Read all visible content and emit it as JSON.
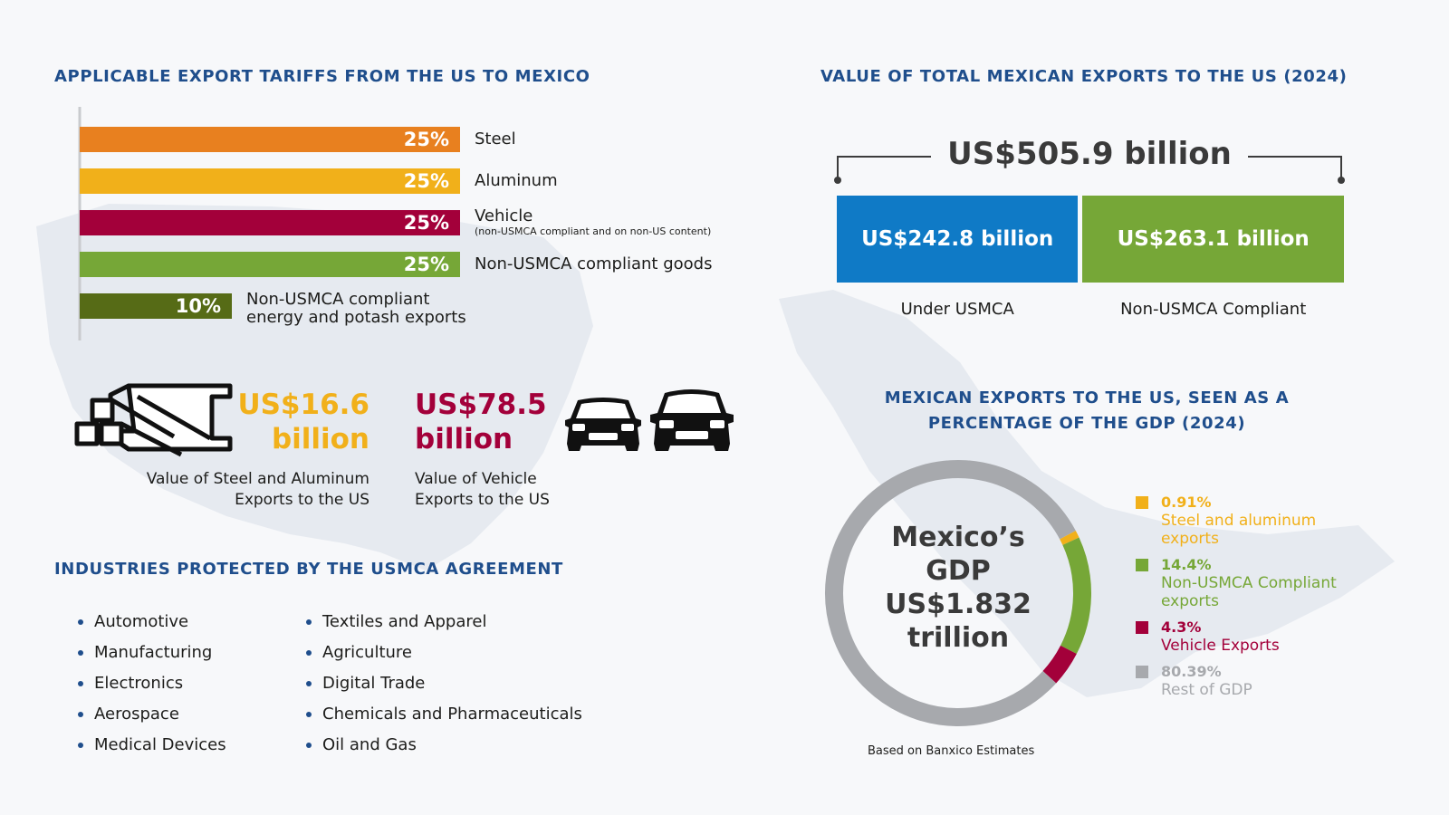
{
  "tariffs": {
    "heading": "APPLICABLE EXPORT TARIFFS FROM THE US TO MEXICO"
  },
  "chart_data": {
    "type": "bar",
    "orientation": "horizontal",
    "categories": [
      "Steel",
      "Aluminum",
      "Vehicle",
      "Non-USMCA compliant goods",
      "Non-USMCA compliant energy and potash exports"
    ],
    "category_notes": [
      "",
      "",
      "(non-USMCA compliant and on non-US content)",
      "",
      ""
    ],
    "values": [
      25,
      25,
      25,
      25,
      10
    ],
    "value_labels": [
      "25%",
      "25%",
      "25%",
      "25%",
      "10%"
    ],
    "unit": "%",
    "xlim": [
      0,
      25
    ],
    "colors": [
      "#e8801f",
      "#f1b01a",
      "#a3003a",
      "#76a737",
      "#566b16"
    ]
  },
  "steel_aluminum": {
    "value_line1": "US$16.6",
    "value_line2": "billion",
    "caption_line1": "Value of Steel and Aluminum",
    "caption_line2": "Exports to the US",
    "color": "#f1b01a",
    "icon": "steel-beams-icon"
  },
  "vehicles": {
    "value_line1": "US$78.5",
    "value_line2": "billion",
    "caption_line1": "Value of Vehicle",
    "caption_line2": "Exports to the US",
    "color": "#a3003a",
    "icon": "car-front-icon"
  },
  "industries": {
    "heading": "INDUSTRIES PROTECTED BY THE USMCA AGREEMENT",
    "column1": [
      "Automotive",
      "Manufacturing",
      "Electronics",
      "Aerospace",
      "Medical Devices"
    ],
    "column2": [
      "Textiles and Apparel",
      "Agriculture",
      "Digital Trade",
      "Chemicals and Pharmaceuticals",
      "Oil and Gas"
    ]
  },
  "exports": {
    "heading": "VALUE OF TOTAL MEXICAN EXPORTS TO THE US (2024)",
    "total": "US$505.9 billion",
    "under_usmca": {
      "value": "US$242.8 billion",
      "label": "Under USMCA",
      "amount": 242.8,
      "color": "#0f7ac6"
    },
    "non_usmca": {
      "value": "US$263.1 billion",
      "label": "Non-USMCA Compliant",
      "amount": 263.1,
      "color": "#76a737"
    }
  },
  "gdp": {
    "heading_line1": "MEXICAN EXPORTS TO THE US, SEEN AS A",
    "heading_line2": "PERCENTAGE OF THE GDP (2024)",
    "center_line1": "Mexico’s",
    "center_line2": "GDP",
    "center_line3": "US$1.832",
    "center_line4": "trillion",
    "source": "Based on Banxico Estimates",
    "segments": [
      {
        "pct_label": "0.91%",
        "name": "Steel and aluminum exports",
        "value": 0.91,
        "color": "#f1b01a"
      },
      {
        "pct_label": "14.4%",
        "name": "Non-USMCA Compliant exports",
        "value": 14.4,
        "color": "#76a737"
      },
      {
        "pct_label": "4.3%",
        "name": "Vehicle Exports",
        "value": 4.3,
        "color": "#a3003a"
      },
      {
        "pct_label": "80.39%",
        "name": "Rest of GDP",
        "value": 80.39,
        "color": "#a7a9ad"
      }
    ]
  }
}
